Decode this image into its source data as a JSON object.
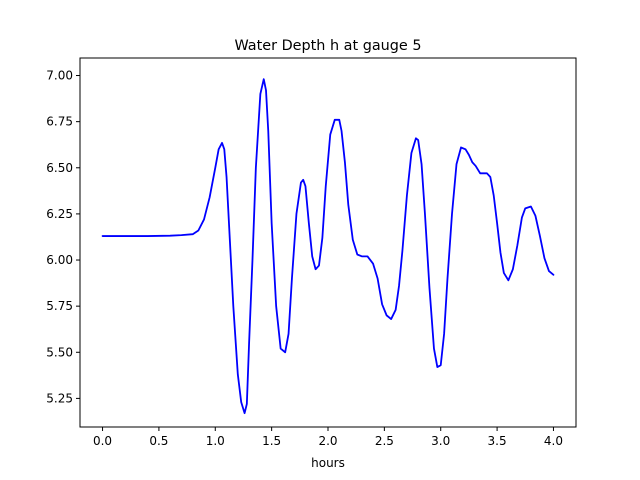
{
  "chart_data": {
    "type": "line",
    "title": "Water Depth h at gauge 5",
    "xlabel": "hours",
    "ylabel": "",
    "xlim": [
      -0.2,
      4.2
    ],
    "ylim": [
      5.095,
      7.095
    ],
    "x_ticks": [
      0.0,
      0.5,
      1.0,
      1.5,
      2.0,
      2.5,
      3.0,
      3.5,
      4.0
    ],
    "x_tick_labels": [
      "0.0",
      "0.5",
      "1.0",
      "1.5",
      "2.0",
      "2.5",
      "3.0",
      "3.5",
      "4.0"
    ],
    "y_ticks": [
      5.25,
      5.5,
      5.75,
      6.0,
      6.25,
      6.5,
      6.75,
      7.0
    ],
    "y_tick_labels": [
      "5.25",
      "5.50",
      "5.75",
      "6.00",
      "6.25",
      "6.50",
      "6.75",
      "7.00"
    ],
    "grid": false,
    "legend": "none",
    "series": [
      {
        "color": "#0000ff",
        "x": [
          0.0,
          0.2,
          0.4,
          0.6,
          0.7,
          0.8,
          0.85,
          0.9,
          0.95,
          1.0,
          1.03,
          1.06,
          1.08,
          1.1,
          1.13,
          1.16,
          1.2,
          1.23,
          1.26,
          1.28,
          1.3,
          1.33,
          1.36,
          1.4,
          1.43,
          1.45,
          1.47,
          1.5,
          1.54,
          1.58,
          1.62,
          1.65,
          1.68,
          1.72,
          1.76,
          1.78,
          1.8,
          1.83,
          1.86,
          1.89,
          1.92,
          1.95,
          1.98,
          2.02,
          2.06,
          2.1,
          2.12,
          2.15,
          2.18,
          2.22,
          2.26,
          2.3,
          2.35,
          2.4,
          2.44,
          2.48,
          2.52,
          2.56,
          2.6,
          2.63,
          2.66,
          2.7,
          2.74,
          2.78,
          2.8,
          2.83,
          2.86,
          2.9,
          2.94,
          2.97,
          3.0,
          3.03,
          3.06,
          3.1,
          3.14,
          3.18,
          3.22,
          3.25,
          3.28,
          3.31,
          3.35,
          3.38,
          3.41,
          3.44,
          3.47,
          3.5,
          3.53,
          3.56,
          3.6,
          3.64,
          3.68,
          3.72,
          3.75,
          3.8,
          3.84,
          3.88,
          3.92,
          3.96,
          4.0
        ],
        "y": [
          6.13,
          6.13,
          6.13,
          6.132,
          6.135,
          6.14,
          6.16,
          6.22,
          6.34,
          6.5,
          6.6,
          6.635,
          6.6,
          6.45,
          6.1,
          5.75,
          5.38,
          5.23,
          5.17,
          5.22,
          5.55,
          6.0,
          6.5,
          6.9,
          6.98,
          6.92,
          6.7,
          6.2,
          5.75,
          5.52,
          5.5,
          5.6,
          5.9,
          6.25,
          6.42,
          6.435,
          6.4,
          6.2,
          6.02,
          5.95,
          5.97,
          6.12,
          6.4,
          6.68,
          6.76,
          6.76,
          6.7,
          6.53,
          6.3,
          6.11,
          6.03,
          6.02,
          6.02,
          5.98,
          5.9,
          5.76,
          5.7,
          5.68,
          5.73,
          5.86,
          6.05,
          6.35,
          6.58,
          6.66,
          6.65,
          6.52,
          6.25,
          5.85,
          5.52,
          5.42,
          5.43,
          5.6,
          5.9,
          6.25,
          6.52,
          6.61,
          6.6,
          6.57,
          6.53,
          6.51,
          6.47,
          6.47,
          6.47,
          6.45,
          6.35,
          6.2,
          6.04,
          5.93,
          5.89,
          5.95,
          6.08,
          6.23,
          6.28,
          6.29,
          6.24,
          6.13,
          6.01,
          5.94,
          5.92
        ]
      }
    ]
  }
}
